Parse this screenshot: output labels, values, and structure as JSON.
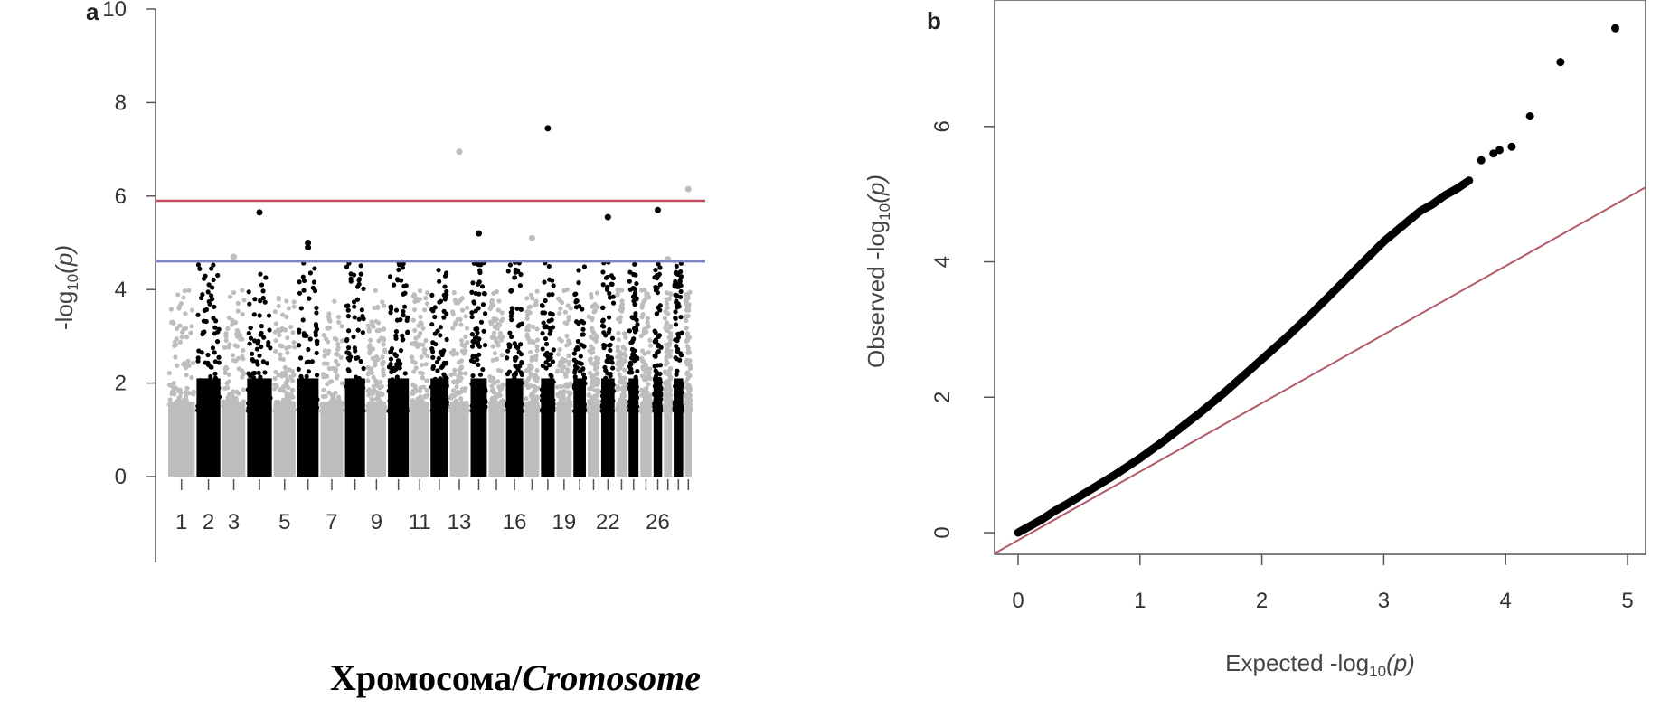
{
  "chart_data": [
    {
      "type": "scatter",
      "subtype": "manhattan",
      "panel_label": "a",
      "xlabel": "Хромосома/",
      "xlabel_italic": "Cromosome",
      "ylabel_prefix": "-log",
      "ylabel_sub": "10",
      "ylabel_suffix": "(p)",
      "ylim": [
        0,
        10
      ],
      "yticks": [
        "0",
        "2",
        "4",
        "6",
        "8",
        "10"
      ],
      "chromosome_tick_labels": [
        "1",
        "2",
        "3",
        "5",
        "7",
        "9",
        "11",
        "13",
        "16",
        "19",
        "22",
        "26"
      ],
      "colors": {
        "odd": "#bdbdbd",
        "even": "#000000",
        "genome_wide_line": "#c0505a",
        "suggestive_line": "#7d86c2"
      },
      "thresholds": {
        "genome_wide": 5.9,
        "suggestive": 4.6
      },
      "chromosome_count": 29,
      "top_points": [
        {
          "chromosome": 4,
          "value": 5.65
        },
        {
          "chromosome": 6,
          "value": 5.0
        },
        {
          "chromosome": 6,
          "value": 4.9
        },
        {
          "chromosome": 3,
          "value": 4.7
        },
        {
          "chromosome": 13,
          "value": 6.95
        },
        {
          "chromosome": 18,
          "value": 7.45
        },
        {
          "chromosome": 17,
          "value": 5.1
        },
        {
          "chromosome": 14,
          "value": 4.55
        },
        {
          "chromosome": 14,
          "value": 5.2
        },
        {
          "chromosome": 22,
          "value": 5.55
        },
        {
          "chromosome": 26,
          "value": 5.7
        },
        {
          "chromosome": 27,
          "value": 4.65
        },
        {
          "chromosome": 29,
          "value": 6.15
        }
      ]
    },
    {
      "type": "scatter",
      "subtype": "qq",
      "panel_label": "b",
      "xlabel_prefix": "Expected  -log",
      "xlabel_sub": "10",
      "xlabel_suffix": "(p)",
      "ylabel_prefix": "Observed  -log",
      "ylabel_sub": "10",
      "ylabel_suffix": "(p)",
      "xlim": [
        0,
        5
      ],
      "ylim": [
        0,
        7.6
      ],
      "xticks": [
        "0",
        "1",
        "2",
        "3",
        "4",
        "5"
      ],
      "yticks": [
        "0",
        "2",
        "4",
        "6"
      ],
      "reference_line": {
        "slope": 1,
        "color": "#b05b66"
      },
      "points": [
        [
          0,
          0
        ],
        [
          0.1,
          0.1
        ],
        [
          0.2,
          0.2
        ],
        [
          0.3,
          0.32
        ],
        [
          0.4,
          0.42
        ],
        [
          0.5,
          0.53
        ],
        [
          0.6,
          0.64
        ],
        [
          0.7,
          0.75
        ],
        [
          0.8,
          0.86
        ],
        [
          0.9,
          0.98
        ],
        [
          1.0,
          1.1
        ],
        [
          1.1,
          1.23
        ],
        [
          1.2,
          1.36
        ],
        [
          1.3,
          1.5
        ],
        [
          1.4,
          1.64
        ],
        [
          1.5,
          1.78
        ],
        [
          1.6,
          1.93
        ],
        [
          1.7,
          2.08
        ],
        [
          1.8,
          2.24
        ],
        [
          1.9,
          2.4
        ],
        [
          2.0,
          2.56
        ],
        [
          2.1,
          2.72
        ],
        [
          2.2,
          2.88
        ],
        [
          2.3,
          3.05
        ],
        [
          2.4,
          3.22
        ],
        [
          2.5,
          3.4
        ],
        [
          2.6,
          3.58
        ],
        [
          2.7,
          3.76
        ],
        [
          2.8,
          3.94
        ],
        [
          2.9,
          4.12
        ],
        [
          3.0,
          4.3
        ],
        [
          3.1,
          4.45
        ],
        [
          3.2,
          4.6
        ],
        [
          3.3,
          4.75
        ],
        [
          3.4,
          4.85
        ],
        [
          3.5,
          4.98
        ],
        [
          3.6,
          5.08
        ],
        [
          3.7,
          5.2
        ],
        [
          3.8,
          5.5
        ],
        [
          3.9,
          5.6
        ],
        [
          3.95,
          5.65
        ],
        [
          4.05,
          5.7
        ],
        [
          4.2,
          6.15
        ],
        [
          4.45,
          6.95
        ],
        [
          4.9,
          7.45
        ]
      ]
    }
  ],
  "caption": {
    "text_regular": "Хромосома/",
    "text_italic": "Cromosome"
  }
}
